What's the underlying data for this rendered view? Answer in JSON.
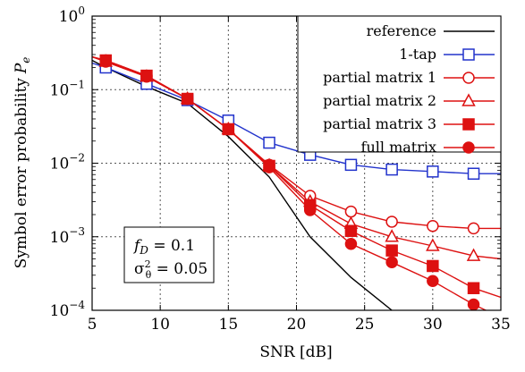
{
  "chart_data": {
    "type": "line",
    "xlabel": "SNR [dB]",
    "ylabel": "Symbol error probability",
    "ylabel_symbol": "P",
    "ylabel_subscript": "e",
    "xlim": [
      5,
      35
    ],
    "ylim": [
      0.0001,
      1
    ],
    "yscale": "log",
    "grid": true,
    "legend_position": "top-right",
    "x_ticks": [
      5,
      10,
      15,
      20,
      25,
      30,
      35
    ],
    "x_tick_labels": [
      "5",
      "10",
      "15",
      "20",
      "25",
      "30",
      "35"
    ],
    "y_ticks": [
      0.0001,
      0.001,
      0.01,
      0.1,
      1
    ],
    "y_tick_base": "10",
    "y_tick_exponents": [
      "−4",
      "−3",
      "−2",
      "−1",
      "0"
    ],
    "annotation": {
      "line1_symbol": "f",
      "line1_sub": "D",
      "line1_rest": " = 0.1",
      "line2_symbol": "σ",
      "line2_sup": "2",
      "line2_sub": "θ",
      "line2_rest": " = 0.05"
    },
    "series": [
      {
        "name": "reference",
        "color": "#000000",
        "marker": "none",
        "x": [
          5,
          6,
          9,
          12,
          15,
          18,
          21,
          24,
          27
        ],
        "y": [
          0.25,
          0.2,
          0.11,
          0.065,
          0.023,
          0.0065,
          0.001,
          0.00028,
          0.0001
        ]
      },
      {
        "name": "1-tap",
        "color": "#2233cc",
        "marker": "open-square",
        "x": [
          5,
          6,
          9,
          12,
          15,
          18,
          21,
          24,
          27,
          30,
          33,
          35
        ],
        "y": [
          0.23,
          0.2,
          0.12,
          0.072,
          0.038,
          0.019,
          0.013,
          0.0095,
          0.0082,
          0.0077,
          0.0072,
          0.0072
        ],
        "marked": [
          false,
          true,
          true,
          true,
          true,
          true,
          true,
          true,
          true,
          true,
          true,
          false
        ]
      },
      {
        "name": "partial matrix 1",
        "color": "#dd1111",
        "marker": "open-circle",
        "x": [
          5,
          6,
          9,
          12,
          15,
          18,
          21,
          24,
          27,
          30,
          33,
          35
        ],
        "y": [
          0.28,
          0.24,
          0.15,
          0.075,
          0.029,
          0.0095,
          0.0036,
          0.0022,
          0.0016,
          0.0014,
          0.0013,
          0.0013
        ],
        "marked": [
          false,
          true,
          true,
          true,
          true,
          true,
          true,
          true,
          true,
          true,
          true,
          false
        ]
      },
      {
        "name": "partial matrix 2",
        "color": "#dd1111",
        "marker": "open-triangle",
        "x": [
          5,
          6,
          9,
          12,
          15,
          18,
          21,
          24,
          27,
          30,
          33,
          35
        ],
        "y": [
          0.28,
          0.24,
          0.15,
          0.075,
          0.029,
          0.0093,
          0.003,
          0.0015,
          0.001,
          0.00075,
          0.00055,
          0.0005
        ],
        "marked": [
          false,
          true,
          true,
          true,
          true,
          true,
          true,
          true,
          true,
          true,
          true,
          false
        ]
      },
      {
        "name": "partial matrix 3",
        "color": "#dd1111",
        "marker": "filled-square",
        "x": [
          5,
          6,
          9,
          12,
          15,
          18,
          21,
          24,
          27,
          30,
          33,
          35
        ],
        "y": [
          0.28,
          0.25,
          0.155,
          0.075,
          0.029,
          0.0092,
          0.0027,
          0.0012,
          0.00065,
          0.0004,
          0.0002,
          0.00015
        ],
        "marked": [
          false,
          true,
          true,
          true,
          true,
          true,
          true,
          true,
          true,
          true,
          true,
          false
        ]
      },
      {
        "name": "full matrix",
        "color": "#dd1111",
        "marker": "filled-circle",
        "x": [
          5,
          6,
          9,
          12,
          15,
          18,
          21,
          24,
          27,
          30,
          33,
          35
        ],
        "y": [
          0.28,
          0.25,
          0.155,
          0.075,
          0.029,
          0.0088,
          0.0023,
          0.0008,
          0.00045,
          0.00025,
          0.00012,
          8e-05
        ],
        "marked": [
          false,
          true,
          true,
          true,
          true,
          true,
          true,
          true,
          true,
          true,
          true,
          false
        ]
      }
    ]
  }
}
